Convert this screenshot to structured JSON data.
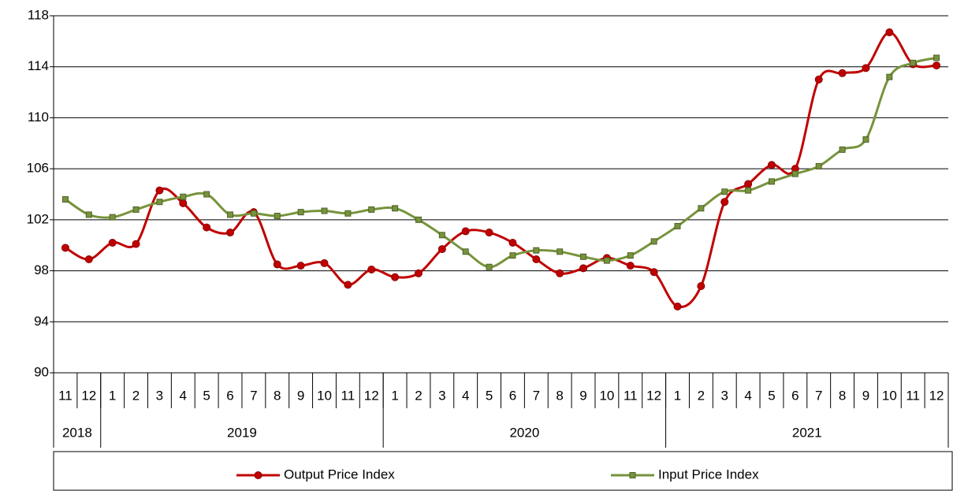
{
  "chart_data": {
    "type": "line",
    "categories": [
      "11",
      "12",
      "1",
      "2",
      "3",
      "4",
      "5",
      "6",
      "7",
      "8",
      "9",
      "10",
      "11",
      "12",
      "1",
      "2",
      "3",
      "4",
      "5",
      "6",
      "7",
      "8",
      "9",
      "10",
      "11",
      "12",
      "1",
      "2",
      "3",
      "4",
      "5",
      "6",
      "7",
      "8",
      "9",
      "10",
      "11",
      "12"
    ],
    "category_groups": [
      {
        "label": "2018",
        "count": 2
      },
      {
        "label": "2019",
        "count": 12
      },
      {
        "label": "2020",
        "count": 12
      },
      {
        "label": "2021",
        "count": 12
      }
    ],
    "series": [
      {
        "name": "Output Price Index",
        "color": "#c00000",
        "marker": "circle",
        "values": [
          99.8,
          98.9,
          100.2,
          100.1,
          104.3,
          103.3,
          101.4,
          101.0,
          102.6,
          98.5,
          98.4,
          98.6,
          96.9,
          98.1,
          97.5,
          97.8,
          99.7,
          101.1,
          101.0,
          100.2,
          98.9,
          97.8,
          98.2,
          99.0,
          98.4,
          97.9,
          95.2,
          96.8,
          103.4,
          104.8,
          106.3,
          106.0,
          113.0,
          113.5,
          113.9,
          116.7,
          114.2,
          114.1
        ]
      },
      {
        "name": "Input Price Index",
        "color": "#77933c",
        "marker": "square",
        "values": [
          103.6,
          102.4,
          102.2,
          102.8,
          103.4,
          103.8,
          104.0,
          102.4,
          102.5,
          102.3,
          102.6,
          102.7,
          102.5,
          102.8,
          102.9,
          102.0,
          100.8,
          99.5,
          98.3,
          99.2,
          99.6,
          99.5,
          99.1,
          98.8,
          99.2,
          100.3,
          101.5,
          102.9,
          104.2,
          104.3,
          105.0,
          105.6,
          106.2,
          107.5,
          108.3,
          113.2,
          114.3,
          114.7
        ]
      }
    ],
    "ylim": [
      90,
      118
    ],
    "yticks": [
      90,
      94,
      98,
      102,
      106,
      110,
      114,
      118
    ],
    "grid": true,
    "smooth": true
  }
}
